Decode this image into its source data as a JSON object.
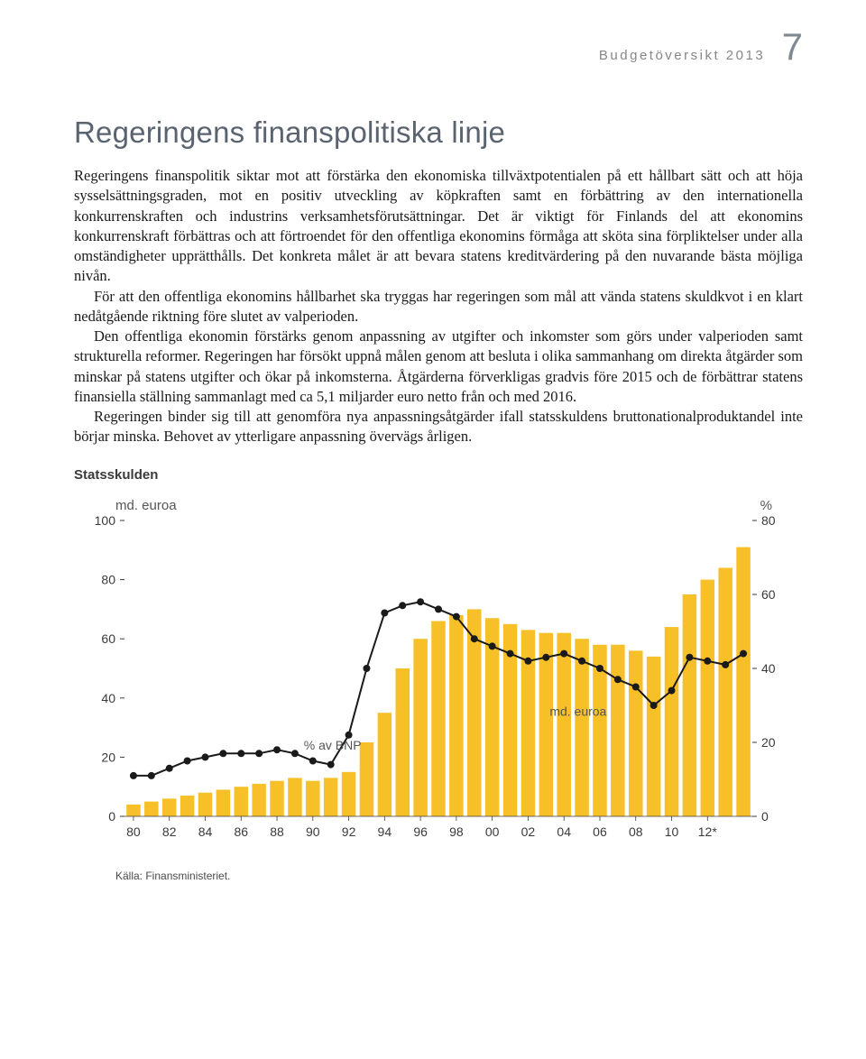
{
  "header": {
    "running_head": "Budgetöversikt 2013",
    "page_number": "7"
  },
  "title": "Regeringens finanspolitiska linje",
  "paragraphs": [
    "Regeringens finanspolitik siktar mot att förstärka den ekonomiska tillväxtpotentialen på ett hållbart sätt och att höja sysselsättningsgraden, mot en positiv utveckling av köpkraften samt en förbättring av den internationella konkurrenskraften och industrins verksamhetsförutsättningar. Det är viktigt för Finlands del att ekonomins konkurrenskraft förbättras och att förtroendet för den offentliga ekonomins förmåga att sköta sina förpliktelser under alla omständigheter upprätthålls. Det konkreta målet är att bevara statens kreditvärdering på den nuvarande bästa möjliga nivån.",
    "För att den offentliga ekonomins hållbarhet ska tryggas har regeringen som mål att vända statens skuldkvot i en klart nedåtgående riktning före slutet av valperioden.",
    "Den offentliga ekonomin förstärks genom anpassning av utgifter och inkomster som görs under valperioden samt strukturella reformer. Regeringen har försökt uppnå målen genom att besluta i olika sammanhang om direkta åtgärder som minskar på statens utgifter och ökar på inkomsterna. Åtgärderna förverkligas gradvis före 2015 och de förbättrar statens finansiella ställning sammanlagt med ca 5,1 miljarder euro netto från och med 2016.",
    "Regeringen binder sig till att genomföra nya anpassningsåtgärder ifall statsskuldens bruttonationalproduktandel inte börjar minska. Behovet av ytterligare anpassning övervägs årligen."
  ],
  "chart": {
    "title": "Statsskulden",
    "type": "bar+line",
    "y_left_label": "md. euroa",
    "y_right_label": "%",
    "y_left": {
      "min": 0,
      "max": 100,
      "step": 20
    },
    "y_right": {
      "min": 0,
      "max": 80,
      "step": 20
    },
    "x_labels": [
      "80",
      "82",
      "84",
      "86",
      "88",
      "90",
      "92",
      "94",
      "96",
      "98",
      "00",
      "02",
      "04",
      "06",
      "08",
      "10",
      "12*"
    ],
    "x_label_interval": 2,
    "bar_color": "#f7c028",
    "bar_values": [
      4,
      5,
      6,
      7,
      8,
      9,
      10,
      11,
      12,
      13,
      12,
      13,
      15,
      25,
      35,
      50,
      60,
      66,
      68,
      70,
      67,
      65,
      63,
      62,
      62,
      60,
      58,
      58,
      56,
      54,
      64,
      75,
      80,
      84,
      91
    ],
    "line_color": "#1a1a1a",
    "line_values": [
      11,
      11,
      13,
      15,
      16,
      17,
      17,
      17,
      18,
      17,
      15,
      14,
      22,
      40,
      55,
      57,
      58,
      56,
      54,
      48,
      46,
      44,
      42,
      43,
      44,
      42,
      40,
      37,
      35,
      30,
      34,
      43,
      42,
      41,
      44
    ],
    "annotations": {
      "bar_label": "md. euroa",
      "line_label": "% av BNP"
    },
    "plot_bg": "#ffffff",
    "grid_color": "#ffffff",
    "tick_color": "#3a3a3a",
    "axis_fontsize": 14,
    "label_fontsize": 15,
    "source": "Källa: Finansministeriet."
  }
}
